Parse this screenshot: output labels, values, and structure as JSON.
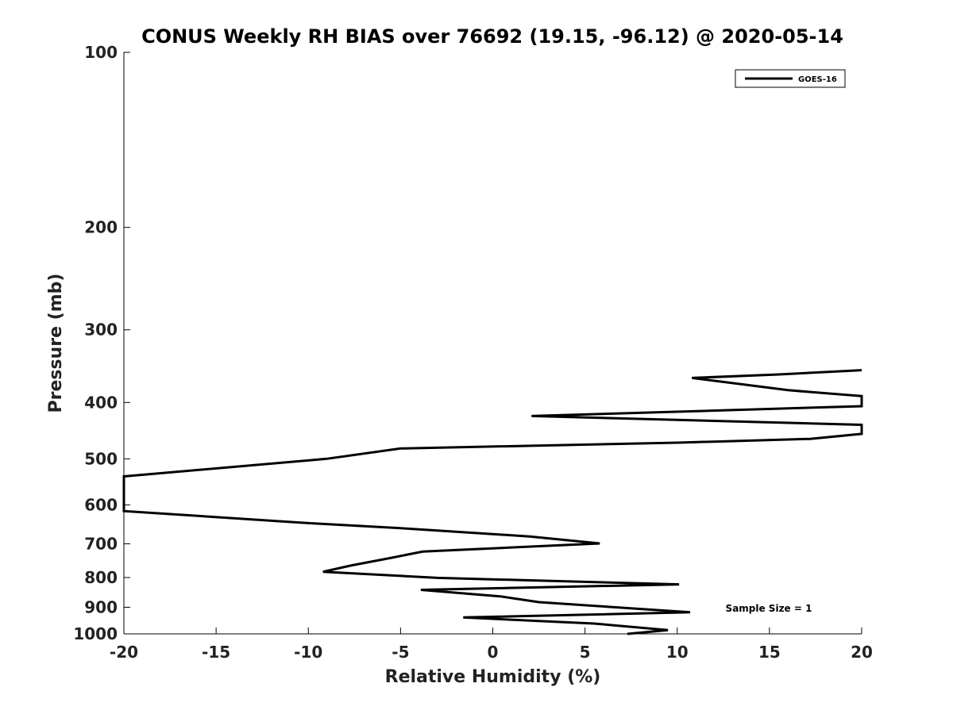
{
  "chart_data": {
    "type": "line",
    "title": "CONUS Weekly RH BIAS over 76692 (19.15, -96.12) @ 2020-05-14",
    "xlabel": "Relative Humidity (%)",
    "ylabel": "Pressure (mb)",
    "xlim": [
      -20,
      20
    ],
    "ylim": [
      1000,
      100
    ],
    "yscale": "log",
    "xticks": [
      -20,
      -15,
      -10,
      -5,
      0,
      5,
      10,
      15,
      20
    ],
    "yticks": [
      100,
      200,
      300,
      400,
      500,
      600,
      700,
      800,
      900,
      1000
    ],
    "grid": false,
    "legend_position": "top-right",
    "annotation": "Sample Size = 1",
    "series": [
      {
        "name": "GOES-16",
        "color": "#000000",
        "points": [
          [
            20.0,
            352
          ],
          [
            15.5,
            358
          ],
          [
            10.8,
            363
          ],
          [
            16.0,
            381
          ],
          [
            20.0,
            390
          ],
          [
            20.0,
            406
          ],
          [
            2.1,
            422
          ],
          [
            20.0,
            437
          ],
          [
            20.0,
            453
          ],
          [
            17.2,
            462
          ],
          [
            10.0,
            469
          ],
          [
            -5.0,
            480
          ],
          [
            -9.0,
            500
          ],
          [
            -20.0,
            536
          ],
          [
            -20.0,
            615
          ],
          [
            -10.0,
            645
          ],
          [
            -5.0,
            658
          ],
          [
            2.0,
            680
          ],
          [
            5.8,
            699
          ],
          [
            -3.8,
            722
          ],
          [
            -5.5,
            740
          ],
          [
            -7.7,
            763
          ],
          [
            -9.2,
            782
          ],
          [
            -3.0,
            801
          ],
          [
            10.1,
            822
          ],
          [
            -3.9,
            840
          ],
          [
            0.4,
            862
          ],
          [
            2.5,
            882
          ],
          [
            10.7,
            918
          ],
          [
            -1.6,
            937
          ],
          [
            5.5,
            960
          ],
          [
            9.5,
            985
          ],
          [
            7.3,
            1000
          ]
        ]
      }
    ]
  }
}
